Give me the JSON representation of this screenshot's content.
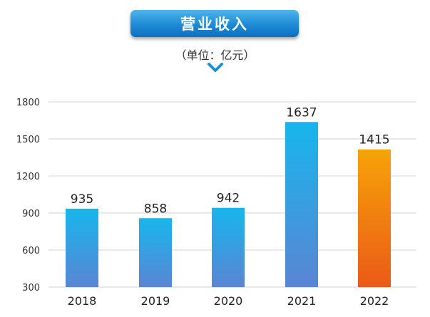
{
  "header": {
    "title": "营业收入",
    "unit_note": "（单位：亿元）"
  },
  "chart_data": {
    "type": "bar",
    "title": "营业收入",
    "unit": "（单位：亿元）",
    "categories": [
      "2018",
      "2019",
      "2020",
      "2021",
      "2022"
    ],
    "values": [
      935,
      858,
      942,
      1637,
      1415
    ],
    "value_labels": [
      "935",
      "858",
      "942",
      "1637",
      "1415"
    ],
    "ylim": [
      300,
      1800
    ],
    "yticks": [
      300,
      600,
      900,
      1200,
      1500,
      1800
    ],
    "grid": true,
    "highlight_index": 4,
    "colors": {
      "bar_top": "#17b6ec",
      "bar_bottom": "#5a85d3",
      "highlight_top": "#f6a308",
      "highlight_bottom": "#ea5a18",
      "grid": "#d3d3d3",
      "accent": "#1d8fd9"
    }
  }
}
